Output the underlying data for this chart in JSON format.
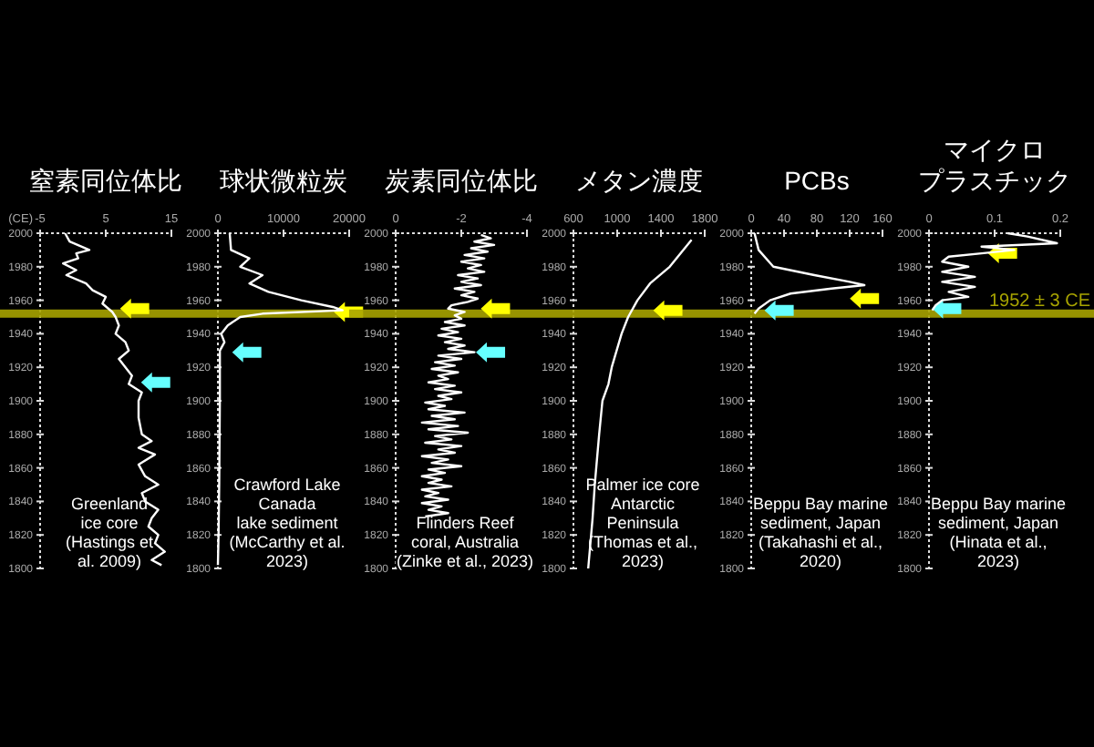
{
  "chart_data": [
    {
      "type": "line",
      "title": "窒素同位体比",
      "ylabel": "(CE)",
      "xlim": [
        -5,
        15
      ],
      "xticks": [
        -5,
        5,
        15
      ],
      "ylim": [
        1800,
        2000
      ],
      "yticks": [
        1800,
        1820,
        1840,
        1860,
        1880,
        1900,
        1920,
        1940,
        1960,
        1980,
        2000
      ],
      "ref_lines": [
        {
          "axis": "y",
          "value": 1952,
          "label": null,
          "color": "#a8a400"
        }
      ],
      "annotations": [
        "Greenland\nice core\n(Hastings et\nal. 2009)"
      ],
      "series": [
        {
          "type": "line",
          "color": "#ffffff",
          "x": [
            -1.2,
            -0.5,
            2.5,
            0.5,
            0.8,
            -1.5,
            0.5,
            -1,
            2,
            3,
            5,
            4.5,
            6,
            6.5,
            7,
            6.5,
            8,
            8.5,
            7,
            8,
            9,
            8.5,
            10.5,
            10,
            10,
            10.5,
            12,
            10,
            12.5,
            10,
            11,
            13,
            10.5,
            11,
            13,
            12,
            11.5,
            13,
            12.5,
            14,
            12,
            13.5
          ],
          "values": [
            2000,
            1995,
            1990,
            1988,
            1985,
            1982,
            1978,
            1975,
            1970,
            1966,
            1962,
            1958,
            1953,
            1950,
            1945,
            1940,
            1935,
            1930,
            1925,
            1920,
            1915,
            1910,
            1905,
            1900,
            1890,
            1880,
            1876,
            1872,
            1868,
            1862,
            1855,
            1850,
            1845,
            1840,
            1835,
            1830,
            1825,
            1820,
            1815,
            1810,
            1805,
            1802
          ]
        },
        {
          "type": "scatter",
          "color": "#ffff00",
          "x": [
            9.4
          ],
          "values": [
            1955
          ]
        },
        {
          "type": "scatter",
          "color": "#66ffff",
          "x": [
            12.6
          ],
          "values": [
            1911
          ]
        }
      ]
    },
    {
      "type": "line",
      "title": "球状微粒炭",
      "xlim": [
        0,
        20000
      ],
      "xticks": [
        0,
        10000,
        20000
      ],
      "ylim": [
        1800,
        2000
      ],
      "yticks": [
        1800,
        1820,
        1840,
        1860,
        1880,
        1900,
        1920,
        1940,
        1960,
        1980,
        2000
      ],
      "ref_lines": [
        {
          "axis": "y",
          "value": 1952,
          "label": null,
          "color": "#a8a400"
        }
      ],
      "annotations": [
        "Crawford Lake\nCanada\nlake sediment\n(McCarthy et al.\n2023)"
      ],
      "series": [
        {
          "type": "line",
          "color": "#ffffff",
          "x": [
            1800,
            2000,
            4800,
            3400,
            6800,
            4800,
            7700,
            12700,
            17500,
            19000,
            6800,
            3400,
            1500,
            500,
            1000,
            300,
            300,
            200,
            100,
            0
          ],
          "values": [
            2000,
            1990,
            1985,
            1980,
            1975,
            1970,
            1965,
            1960,
            1956,
            1954,
            1952,
            1950,
            1945,
            1940,
            1935,
            1930,
            1900,
            1850,
            1820,
            1802
          ]
        },
        {
          "type": "scatter",
          "color": "#ffff00",
          "x": [
            19900
          ],
          "values": [
            1953
          ]
        },
        {
          "type": "scatter",
          "color": "#66ffff",
          "x": [
            4400
          ],
          "values": [
            1929
          ]
        }
      ]
    },
    {
      "type": "line",
      "title": "炭素同位体比",
      "xlim": [
        0,
        -4
      ],
      "xticks": [
        0,
        -2,
        -4
      ],
      "ylim": [
        1800,
        2000
      ],
      "yticks": [
        1800,
        1820,
        1840,
        1860,
        1880,
        1900,
        1920,
        1940,
        1960,
        1980,
        2000
      ],
      "ref_lines": [
        {
          "axis": "y",
          "value": 1952,
          "label": null,
          "color": "#a8a400"
        }
      ],
      "annotations": [
        "Flinders Reef\ncoral,  Australia\n(Zinke et al., 2023)"
      ],
      "series": [
        {
          "type": "line",
          "color": "#ffffff",
          "x": [
            -2.6,
            -2.9,
            -2.4,
            -3.0,
            -2.3,
            -2.8,
            -2.1,
            -2.7,
            -2.0,
            -2.6,
            -2.2,
            -2.7,
            -1.9,
            -2.5,
            -2.0,
            -2.6,
            -1.8,
            -2.4,
            -2.0,
            -2.5,
            -2.2,
            -1.7,
            -1.6,
            -2.1,
            -1.8,
            -2.0,
            -1.5,
            -2.1,
            -1.4,
            -1.9,
            -1.3,
            -2.0,
            -1.5,
            -2.1,
            -1.6,
            -2.4,
            -1.3,
            -2.0,
            -1.2,
            -1.8,
            -1.1,
            -1.9,
            -1.3,
            -1.6,
            -1.0,
            -1.8,
            -1.2,
            -2.0,
            -1.3,
            -1.7,
            -0.9,
            -1.5,
            -1.0,
            -2.1,
            -1.1,
            -1.8,
            -0.8,
            -1.9,
            -1.0,
            -2.2,
            -1.2,
            -1.7,
            -0.9,
            -2.0,
            -1.3,
            -1.8,
            -0.8,
            -1.6,
            -1.1,
            -2.0,
            -1.0,
            -1.5,
            -0.8,
            -1.4,
            -1.0,
            -1.7,
            -0.8,
            -1.3,
            -0.9,
            -1.6,
            -0.8,
            -1.4,
            -1.0,
            -1.6,
            -0.9
          ],
          "values": [
            1999,
            1997,
            1995,
            1993,
            1991,
            1989,
            1987,
            1985,
            1983,
            1981,
            1979,
            1977,
            1975,
            1973,
            1971,
            1969,
            1967,
            1965,
            1963,
            1961,
            1959,
            1957,
            1955,
            1953,
            1951,
            1949,
            1947,
            1945,
            1943,
            1941,
            1939,
            1937,
            1935,
            1933,
            1931,
            1929,
            1927,
            1925,
            1923,
            1921,
            1919,
            1917,
            1915,
            1913,
            1911,
            1909,
            1907,
            1905,
            1903,
            1901,
            1899,
            1897,
            1895,
            1893,
            1891,
            1889,
            1887,
            1885,
            1883,
            1881,
            1879,
            1877,
            1875,
            1873,
            1871,
            1869,
            1867,
            1865,
            1863,
            1861,
            1859,
            1857,
            1855,
            1853,
            1851,
            1849,
            1847,
            1845,
            1843,
            1841,
            1839,
            1837,
            1835,
            1833,
            1831
          ]
        },
        {
          "type": "scatter",
          "color": "#ffff00",
          "x": [
            -3.04
          ],
          "values": [
            1955
          ]
        },
        {
          "type": "scatter",
          "color": "#66ffff",
          "x": [
            -2.89
          ],
          "values": [
            1929
          ]
        }
      ]
    },
    {
      "type": "line",
      "title": "メタン濃度",
      "xlim": [
        600,
        1800
      ],
      "xticks": [
        600,
        1000,
        1400,
        1800
      ],
      "ylim": [
        1800,
        2000
      ],
      "yticks": [
        1800,
        1820,
        1840,
        1860,
        1880,
        1900,
        1920,
        1940,
        1960,
        1980,
        2000
      ],
      "ref_lines": [
        {
          "axis": "y",
          "value": 1952,
          "label": null,
          "color": "#a8a400"
        }
      ],
      "annotations": [
        "Palmer ice core\nAntarctic\nPeninsula\n(Thomas et al.,\n2023)"
      ],
      "series": [
        {
          "type": "line",
          "color": "#ffffff",
          "x": [
            1680,
            1480,
            1300,
            1185,
            1100,
            1040,
            950,
            920,
            865,
            835,
            795,
            775,
            735
          ],
          "values": [
            1996,
            1980,
            1970,
            1960,
            1950,
            1940,
            1920,
            1910,
            1900,
            1880,
            1850,
            1830,
            1800
          ]
        },
        {
          "type": "scatter",
          "color": "#ffff00",
          "x": [
            1463
          ],
          "values": [
            1954
          ]
        }
      ]
    },
    {
      "type": "line",
      "title": "PCBs",
      "xlim": [
        0,
        160
      ],
      "xticks": [
        0,
        40,
        80,
        120,
        160
      ],
      "ylim": [
        1800,
        2000
      ],
      "yticks": [
        1800,
        1820,
        1840,
        1860,
        1880,
        1900,
        1920,
        1940,
        1960,
        1980,
        2000
      ],
      "ref_lines": [
        {
          "axis": "y",
          "value": 1952,
          "label": null,
          "color": "#a8a400"
        }
      ],
      "annotations": [
        "Beppu Bay marine\nsediment, Japan\n(Takahashi et al.,\n2020)"
      ],
      "series": [
        {
          "type": "line",
          "color": "#ffffff",
          "x": [
            4,
            9,
            27,
            77,
            120,
            138,
            98,
            48,
            23,
            9,
            4
          ],
          "values": [
            2000,
            1990,
            1980,
            1975,
            1971,
            1969,
            1967,
            1964,
            1960,
            1955,
            1952
          ]
        },
        {
          "type": "scatter",
          "color": "#ffff00",
          "x": [
            138
          ],
          "values": [
            1961
          ]
        },
        {
          "type": "scatter",
          "color": "#66ffff",
          "x": [
            34
          ],
          "values": [
            1954
          ]
        }
      ]
    },
    {
      "type": "line",
      "title": "マイクロプラスチック",
      "xlim": [
        0,
        0.2
      ],
      "xticks": [
        0,
        0.1,
        0.2
      ],
      "ylim": [
        1800,
        2000
      ],
      "yticks": [
        1800,
        1820,
        1840,
        1860,
        1880,
        1900,
        1920,
        1940,
        1960,
        1980,
        2000
      ],
      "ref_lines": [
        {
          "axis": "y",
          "value": 1952,
          "label": "1952 ± 3 CE",
          "color": "#a8a400"
        }
      ],
      "annotations": [
        "Beppu Bay marine\nsediment, Japan\n(Hinata et al.,\n2023)"
      ],
      "series": [
        {
          "type": "line",
          "color": "#ffffff",
          "x": [
            0.12,
            0.15,
            0.195,
            0.08,
            0.13,
            0.08,
            0.03,
            0.02,
            0.06,
            0.02,
            0.07,
            0.02,
            0.07,
            0.03,
            0.06,
            0.02,
            0.01,
            0.005
          ],
          "values": [
            2000,
            1998,
            1994,
            1992,
            1990,
            1988,
            1986,
            1983,
            1980,
            1977,
            1974,
            1971,
            1968,
            1965,
            1962,
            1960,
            1957,
            1954
          ]
        },
        {
          "type": "scatter",
          "color": "#ffff00",
          "x": [
            0.112
          ],
          "values": [
            1988
          ]
        },
        {
          "type": "scatter",
          "color": "#66ffff",
          "x": [
            0.027
          ],
          "values": [
            1955
          ]
        }
      ]
    }
  ]
}
